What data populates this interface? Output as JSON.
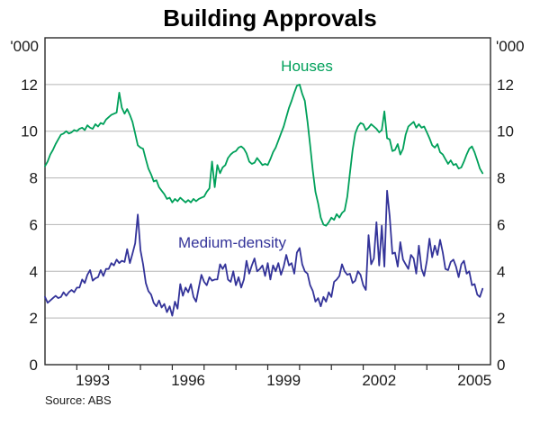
{
  "title": "Building Approvals",
  "axis_unit_left": "'000",
  "axis_unit_right": "'000",
  "source": "Source: ABS",
  "series_labels": {
    "houses": "Houses",
    "medium_density": "Medium-density"
  },
  "colors": {
    "houses": "#00a05a",
    "medium_density": "#333399",
    "gridline": "#b5b5b5",
    "frame": "#2b2b2b",
    "text": "#1a1a1a"
  },
  "chart_data": {
    "type": "line",
    "title": "Building Approvals",
    "unit": "'000",
    "frequency": "monthly",
    "x_start": "1992-01",
    "x_end": "2005-10",
    "ylim": [
      0,
      14
    ],
    "y_ticks": [
      0,
      2,
      4,
      6,
      8,
      10,
      12
    ],
    "x_tick_years": [
      1993,
      1994,
      1995,
      1996,
      1997,
      1998,
      1999,
      2000,
      2001,
      2002,
      2003,
      2004,
      2005
    ],
    "x_label_years": [
      1993,
      1996,
      1999,
      2002,
      2005
    ],
    "grid": "horizontal",
    "legend_position": "inline-labels",
    "source": "ABS",
    "series": [
      {
        "name": "Houses",
        "color": "#00a05a",
        "values": [
          8.5,
          8.7,
          9.0,
          9.2,
          9.45,
          9.65,
          9.85,
          9.9,
          10.0,
          9.9,
          9.95,
          10.05,
          10.0,
          10.1,
          10.15,
          10.05,
          10.25,
          10.15,
          10.1,
          10.3,
          10.2,
          10.35,
          10.3,
          10.5,
          10.6,
          10.7,
          10.75,
          10.8,
          11.65,
          11.0,
          10.75,
          10.95,
          10.7,
          10.4,
          9.9,
          9.4,
          9.3,
          9.25,
          8.8,
          8.4,
          8.15,
          7.85,
          7.9,
          7.6,
          7.45,
          7.3,
          7.1,
          7.15,
          6.95,
          7.1,
          7.0,
          7.15,
          7.05,
          6.95,
          7.05,
          6.95,
          7.1,
          7.0,
          7.1,
          7.15,
          7.2,
          7.4,
          7.55,
          8.7,
          7.6,
          8.55,
          8.2,
          8.45,
          8.55,
          8.85,
          9.0,
          9.1,
          9.15,
          9.3,
          9.35,
          9.25,
          9.05,
          8.7,
          8.6,
          8.65,
          8.85,
          8.7,
          8.55,
          8.6,
          8.55,
          8.8,
          9.1,
          9.3,
          9.6,
          9.9,
          10.2,
          10.6,
          11.0,
          11.3,
          11.65,
          11.95,
          12.0,
          11.6,
          11.3,
          10.4,
          9.4,
          8.3,
          7.4,
          6.9,
          6.3,
          6.0,
          5.95,
          6.1,
          6.3,
          6.2,
          6.45,
          6.3,
          6.5,
          6.6,
          7.2,
          8.2,
          9.2,
          9.9,
          10.2,
          10.35,
          10.3,
          10.05,
          10.15,
          10.3,
          10.2,
          10.1,
          9.95,
          10.05,
          10.85,
          9.7,
          9.65,
          9.15,
          9.2,
          9.45,
          9.0,
          9.25,
          9.85,
          10.2,
          10.3,
          10.4,
          10.15,
          10.3,
          10.15,
          10.2,
          9.95,
          9.7,
          9.4,
          9.3,
          9.45,
          9.1,
          9.0,
          8.8,
          8.6,
          8.75,
          8.55,
          8.6,
          8.4,
          8.45,
          8.7,
          9.0,
          9.25,
          9.35,
          9.1,
          8.75,
          8.4,
          8.2
        ]
      },
      {
        "name": "Medium-density",
        "color": "#333399",
        "values": [
          2.9,
          2.65,
          2.75,
          2.85,
          2.95,
          2.85,
          2.9,
          3.1,
          2.95,
          3.1,
          3.2,
          3.1,
          3.3,
          3.3,
          3.65,
          3.5,
          3.85,
          4.05,
          3.6,
          3.7,
          3.75,
          4.05,
          3.8,
          4.1,
          4.1,
          4.35,
          4.25,
          4.5,
          4.35,
          4.45,
          4.4,
          4.95,
          4.35,
          4.75,
          5.2,
          6.43,
          4.9,
          4.3,
          3.5,
          3.15,
          3.0,
          2.65,
          2.5,
          2.75,
          2.45,
          2.6,
          2.25,
          2.5,
          2.1,
          2.7,
          2.4,
          3.45,
          2.95,
          3.3,
          3.1,
          3.45,
          2.9,
          2.7,
          3.3,
          3.85,
          3.55,
          3.4,
          3.75,
          3.6,
          3.65,
          3.65,
          4.3,
          4.1,
          4.3,
          3.65,
          3.55,
          4.0,
          3.4,
          3.75,
          3.3,
          3.65,
          4.45,
          3.9,
          4.25,
          4.55,
          4.0,
          4.1,
          4.25,
          3.8,
          4.35,
          3.65,
          4.25,
          4.0,
          4.35,
          3.85,
          4.2,
          4.7,
          4.25,
          4.35,
          3.9,
          4.8,
          5.0,
          4.3,
          4.0,
          3.9,
          3.4,
          3.15,
          2.7,
          2.85,
          2.5,
          2.9,
          2.7,
          3.1,
          2.9,
          3.55,
          3.65,
          3.8,
          4.3,
          4.0,
          3.85,
          3.9,
          3.5,
          3.6,
          4.0,
          3.85,
          3.4,
          3.2,
          5.55,
          4.3,
          4.55,
          6.1,
          4.25,
          5.95,
          4.2,
          7.45,
          6.35,
          4.75,
          4.8,
          4.2,
          5.25,
          4.5,
          4.3,
          4.1,
          4.7,
          4.55,
          3.9,
          5.1,
          4.1,
          3.8,
          4.45,
          5.4,
          4.6,
          5.1,
          4.7,
          5.35,
          4.8,
          4.1,
          4.05,
          4.4,
          4.5,
          4.2,
          3.75,
          4.3,
          4.45,
          3.9,
          4.0,
          3.4,
          3.45,
          3.0,
          2.9,
          3.25
        ]
      }
    ]
  }
}
